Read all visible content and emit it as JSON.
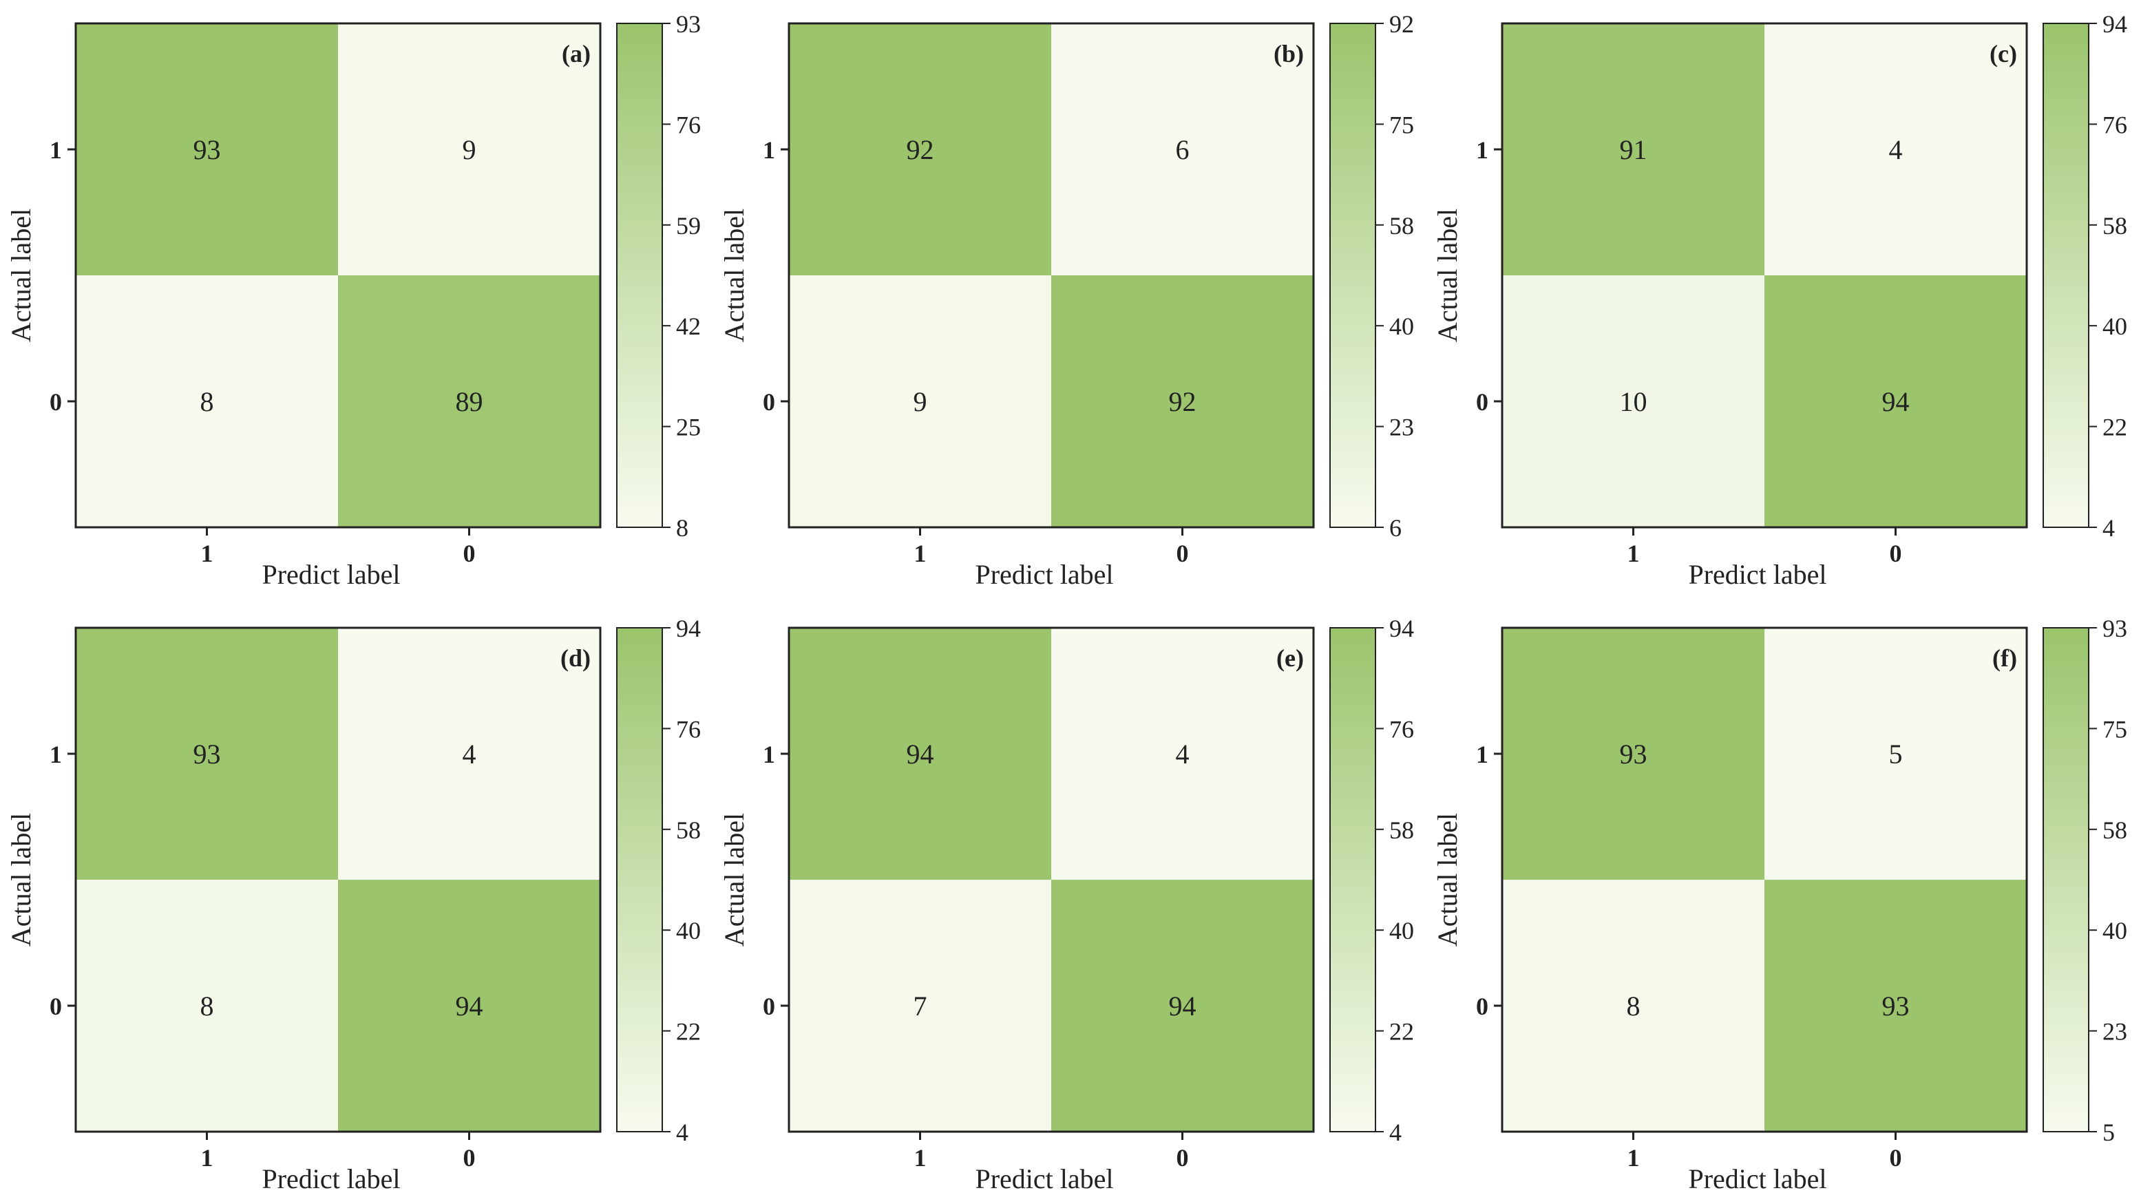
{
  "chart_data": [
    {
      "type": "heatmap",
      "panel_label": "(a)",
      "xlabel": "Predict label",
      "ylabel": "Actual label",
      "x_categories": [
        "1",
        "0"
      ],
      "y_categories": [
        "1",
        "0"
      ],
      "matrix": [
        [
          93,
          9
        ],
        [
          8,
          89
        ]
      ],
      "colorbar_ticks": [
        "93",
        "76",
        "59",
        "42",
        "25",
        "8"
      ],
      "colorbar_range": [
        8,
        93
      ]
    },
    {
      "type": "heatmap",
      "panel_label": "(b)",
      "xlabel": "Predict label",
      "ylabel": "Actual label",
      "x_categories": [
        "1",
        "0"
      ],
      "y_categories": [
        "1",
        "0"
      ],
      "matrix": [
        [
          92,
          6
        ],
        [
          9,
          92
        ]
      ],
      "colorbar_ticks": [
        "92",
        "75",
        "58",
        "40",
        "23",
        "6"
      ],
      "colorbar_range": [
        6,
        92
      ]
    },
    {
      "type": "heatmap",
      "panel_label": "(c)",
      "xlabel": "Predict label",
      "ylabel": "Actual label",
      "x_categories": [
        "1",
        "0"
      ],
      "y_categories": [
        "1",
        "0"
      ],
      "matrix": [
        [
          91,
          4
        ],
        [
          10,
          94
        ]
      ],
      "colorbar_ticks": [
        "94",
        "76",
        "58",
        "40",
        "22",
        "4"
      ],
      "colorbar_range": [
        4,
        94
      ]
    },
    {
      "type": "heatmap",
      "panel_label": "(d)",
      "xlabel": "Predict label",
      "ylabel": "Actual label",
      "x_categories": [
        "1",
        "0"
      ],
      "y_categories": [
        "1",
        "0"
      ],
      "matrix": [
        [
          93,
          4
        ],
        [
          8,
          94
        ]
      ],
      "colorbar_ticks": [
        "94",
        "76",
        "58",
        "40",
        "22",
        "4"
      ],
      "colorbar_range": [
        4,
        94
      ]
    },
    {
      "type": "heatmap",
      "panel_label": "(e)",
      "xlabel": "Predict label",
      "ylabel": "Actual label",
      "x_categories": [
        "1",
        "0"
      ],
      "y_categories": [
        "1",
        "0"
      ],
      "matrix": [
        [
          94,
          4
        ],
        [
          7,
          94
        ]
      ],
      "colorbar_ticks": [
        "94",
        "76",
        "58",
        "40",
        "22",
        "4"
      ],
      "colorbar_range": [
        4,
        94
      ]
    },
    {
      "type": "heatmap",
      "panel_label": "(f)",
      "xlabel": "Predict label",
      "ylabel": "Actual label",
      "x_categories": [
        "1",
        "0"
      ],
      "y_categories": [
        "1",
        "0"
      ],
      "matrix": [
        [
          93,
          5
        ],
        [
          8,
          93
        ]
      ],
      "colorbar_ticks": [
        "93",
        "75",
        "58",
        "40",
        "23",
        "5"
      ],
      "colorbar_range": [
        5,
        93
      ]
    }
  ],
  "colors": {
    "high": "#9bc46c",
    "low": "#f7fbef",
    "border": "#222222",
    "text": "#222222"
  }
}
